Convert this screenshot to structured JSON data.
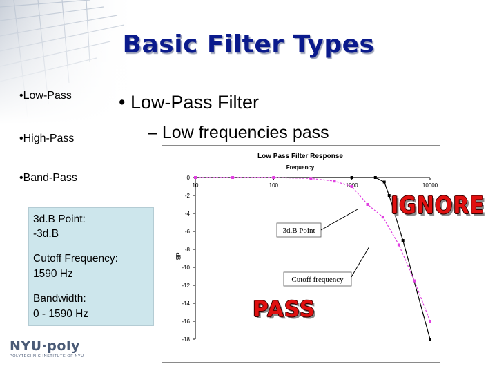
{
  "slide": {
    "title": "Basic Filter Types",
    "side_bullets": [
      "•Low-Pass",
      "•High-Pass",
      "•Band-Pass"
    ],
    "main_bullet": "•  Low-Pass Filter",
    "sub_bullet": "– Low frequencies pass",
    "infobox": {
      "line1": "3d.B Point:",
      "line2": "-3d.B",
      "line3": "Cutoff Frequency:",
      "line4": "1590 Hz",
      "line5": "Bandwidth:",
      "line6": "0 - 1590 Hz"
    },
    "stamps": {
      "ignore": "IGNORE",
      "pass": "PASS"
    },
    "logo": {
      "main": "NYU·poly",
      "sub": "POLYTECHNIC INSTITUTE OF NYU"
    }
  },
  "colors": {
    "title": "#0a1a8c",
    "stamp": "#e01010",
    "infobox": "#cde6ec",
    "series_ideal": "#000000",
    "series_actual": "#e040e0"
  },
  "chart_data": {
    "type": "line",
    "title": "Low Pass Filter Response",
    "xlabel": "Frequency",
    "ylabel": "dB",
    "x_scale": "log",
    "x_ticks": [
      "10",
      "100",
      "1000",
      "10000"
    ],
    "y_ticks": [
      "0",
      "-2",
      "-4",
      "-6",
      "-8",
      "-10",
      "-12",
      "-14",
      "-16",
      "-18"
    ],
    "xlim": [
      10,
      10000
    ],
    "ylim": [
      -18,
      0
    ],
    "annotations": [
      "3d.B Point",
      "Cutoff frequency"
    ],
    "series": [
      {
        "x": [
          10,
          1000,
          2000,
          2600,
          3000,
          4500,
          10000
        ],
        "y": [
          0,
          0,
          0,
          -0.5,
          -2,
          -7,
          -18
        ]
      },
      {
        "x": [
          10,
          30,
          100,
          300,
          600,
          1000,
          1590,
          2500,
          4000,
          6300,
          10000
        ],
        "y": [
          0,
          0,
          0,
          -0.1,
          -0.4,
          -1,
          -3,
          -4.4,
          -7.5,
          -11.5,
          -16
        ]
      }
    ]
  }
}
